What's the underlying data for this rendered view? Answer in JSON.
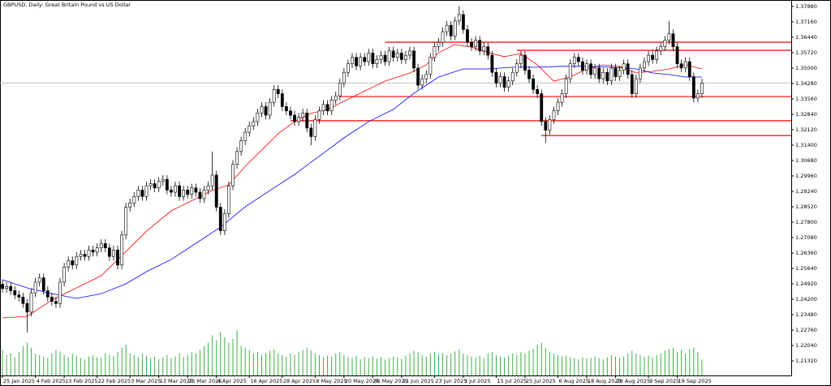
{
  "chart_data": {
    "type": "candlestick",
    "title": "GBPUSD, Daily:  Great Britain Pound vs US Dollar",
    "up_color": "#ffffff",
    "down_color": "#000000",
    "volume_color": "#3cb043",
    "open": [
      1.249,
      1.247,
      1.248,
      1.246,
      1.244,
      1.243,
      1.24,
      1.236,
      1.245,
      1.25,
      1.252,
      1.246,
      1.243,
      1.241,
      1.24,
      1.25,
      1.257,
      1.26,
      1.258,
      1.262,
      1.263,
      1.262,
      1.265,
      1.264,
      1.266,
      1.268,
      1.266,
      1.262,
      1.265,
      1.258,
      1.272,
      1.285,
      1.287,
      1.29,
      1.293,
      1.29,
      1.295,
      1.296,
      1.294,
      1.297,
      1.298,
      1.293,
      1.292,
      1.295,
      1.29,
      1.293,
      1.291,
      1.294,
      1.292,
      1.289,
      1.293,
      1.295,
      1.3,
      1.285,
      1.274,
      1.282,
      1.295,
      1.305,
      1.311,
      1.316,
      1.32,
      1.323,
      1.325,
      1.329,
      1.332,
      1.328,
      1.334,
      1.34,
      1.338,
      1.332,
      1.33,
      1.328,
      1.325,
      1.327,
      1.329,
      1.322,
      1.318,
      1.326,
      1.33,
      1.333,
      1.33,
      1.335,
      1.337,
      1.343,
      1.348,
      1.352,
      1.355,
      1.351,
      1.355,
      1.353,
      1.357,
      1.352,
      1.354,
      1.356,
      1.353,
      1.358,
      1.355,
      1.357,
      1.354,
      1.356,
      1.358,
      1.35,
      1.342,
      1.345,
      1.347,
      1.355,
      1.36,
      1.362,
      1.367,
      1.37,
      1.365,
      1.372,
      1.375,
      1.368,
      1.362,
      1.36,
      1.363,
      1.358,
      1.36,
      1.356,
      1.348,
      1.343,
      1.346,
      1.341,
      1.344,
      1.348,
      1.352,
      1.356,
      1.349,
      1.345,
      1.34,
      1.338,
      1.325,
      1.321,
      1.326,
      1.33,
      1.334,
      1.338,
      1.345,
      1.352,
      1.355,
      1.353,
      1.349,
      1.352,
      1.347,
      1.35,
      1.345,
      1.348,
      1.344,
      1.35,
      1.346,
      1.349,
      1.352,
      1.347,
      1.338,
      1.345,
      1.35,
      1.353,
      1.356,
      1.354,
      1.358,
      1.36,
      1.363,
      1.366,
      1.36,
      1.352,
      1.35,
      1.353,
      1.346,
      1.336,
      1.338
    ],
    "high": [
      1.251,
      1.25,
      1.25,
      1.248,
      1.246,
      1.245,
      1.242,
      1.247,
      1.252,
      1.254,
      1.254,
      1.248,
      1.245,
      1.243,
      1.252,
      1.259,
      1.262,
      1.262,
      1.264,
      1.265,
      1.265,
      1.267,
      1.267,
      1.268,
      1.27,
      1.27,
      1.268,
      1.267,
      1.267,
      1.274,
      1.287,
      1.289,
      1.292,
      1.295,
      1.295,
      1.297,
      1.298,
      1.298,
      1.299,
      1.3,
      1.3,
      1.295,
      1.297,
      1.297,
      1.295,
      1.295,
      1.296,
      1.296,
      1.294,
      1.295,
      1.297,
      1.311,
      1.302,
      1.287,
      1.284,
      1.297,
      1.307,
      1.313,
      1.318,
      1.322,
      1.325,
      1.327,
      1.331,
      1.334,
      1.334,
      1.336,
      1.342,
      1.342,
      1.34,
      1.334,
      1.332,
      1.33,
      1.329,
      1.331,
      1.331,
      1.324,
      1.328,
      1.332,
      1.335,
      1.335,
      1.337,
      1.339,
      1.345,
      1.35,
      1.354,
      1.357,
      1.357,
      1.357,
      1.357,
      1.359,
      1.359,
      1.356,
      1.358,
      1.358,
      1.36,
      1.36,
      1.359,
      1.359,
      1.358,
      1.36,
      1.36,
      1.352,
      1.347,
      1.349,
      1.357,
      1.362,
      1.364,
      1.369,
      1.372,
      1.372,
      1.374,
      1.379,
      1.377,
      1.37,
      1.364,
      1.365,
      1.365,
      1.362,
      1.362,
      1.358,
      1.35,
      1.348,
      1.348,
      1.346,
      1.35,
      1.354,
      1.358,
      1.358,
      1.351,
      1.347,
      1.342,
      1.34,
      1.327,
      1.328,
      1.332,
      1.336,
      1.34,
      1.347,
      1.354,
      1.357,
      1.357,
      1.355,
      1.354,
      1.354,
      1.352,
      1.352,
      1.35,
      1.35,
      1.352,
      1.352,
      1.351,
      1.354,
      1.354,
      1.349,
      1.347,
      1.352,
      1.355,
      1.358,
      1.358,
      1.36,
      1.362,
      1.365,
      1.372,
      1.368,
      1.362,
      1.354,
      1.355,
      1.355,
      1.348,
      1.34,
      1.345
    ],
    "low": [
      1.245,
      1.245,
      1.244,
      1.242,
      1.241,
      1.238,
      1.2265,
      1.234,
      1.243,
      1.248,
      1.244,
      1.241,
      1.239,
      1.238,
      1.238,
      1.248,
      1.255,
      1.256,
      1.256,
      1.26,
      1.26,
      1.26,
      1.262,
      1.262,
      1.264,
      1.264,
      1.26,
      1.26,
      1.256,
      1.256,
      1.27,
      1.283,
      1.285,
      1.288,
      1.288,
      1.288,
      1.293,
      1.292,
      1.292,
      1.295,
      1.291,
      1.29,
      1.29,
      1.288,
      1.288,
      1.289,
      1.289,
      1.29,
      1.287,
      1.287,
      1.291,
      1.293,
      1.283,
      1.272,
      1.272,
      1.28,
      1.293,
      1.303,
      1.309,
      1.314,
      1.318,
      1.321,
      1.323,
      1.327,
      1.326,
      1.326,
      1.332,
      1.336,
      1.33,
      1.328,
      1.326,
      1.323,
      1.323,
      1.325,
      1.32,
      1.314,
      1.316,
      1.324,
      1.328,
      1.328,
      1.328,
      1.333,
      1.335,
      1.341,
      1.346,
      1.35,
      1.349,
      1.349,
      1.351,
      1.351,
      1.35,
      1.35,
      1.352,
      1.351,
      1.351,
      1.353,
      1.353,
      1.352,
      1.352,
      1.354,
      1.348,
      1.34,
      1.34,
      1.343,
      1.345,
      1.353,
      1.358,
      1.36,
      1.365,
      1.363,
      1.363,
      1.37,
      1.366,
      1.36,
      1.358,
      1.358,
      1.356,
      1.356,
      1.354,
      1.346,
      1.341,
      1.341,
      1.339,
      1.339,
      1.342,
      1.346,
      1.35,
      1.347,
      1.343,
      1.338,
      1.336,
      1.323,
      1.315,
      1.319,
      1.324,
      1.328,
      1.332,
      1.336,
      1.343,
      1.35,
      1.351,
      1.347,
      1.347,
      1.345,
      1.345,
      1.343,
      1.343,
      1.342,
      1.342,
      1.344,
      1.344,
      1.347,
      1.345,
      1.336,
      1.336,
      1.343,
      1.348,
      1.351,
      1.352,
      1.352,
      1.356,
      1.358,
      1.361,
      1.358,
      1.35,
      1.348,
      1.348,
      1.344,
      1.334,
      1.334,
      1.336
    ],
    "close": [
      1.247,
      1.248,
      1.246,
      1.244,
      1.243,
      1.24,
      1.236,
      1.245,
      1.25,
      1.252,
      1.246,
      1.243,
      1.241,
      1.24,
      1.25,
      1.257,
      1.26,
      1.258,
      1.262,
      1.263,
      1.262,
      1.265,
      1.264,
      1.266,
      1.268,
      1.266,
      1.262,
      1.265,
      1.258,
      1.272,
      1.285,
      1.287,
      1.29,
      1.293,
      1.29,
      1.295,
      1.296,
      1.294,
      1.297,
      1.298,
      1.293,
      1.292,
      1.295,
      1.29,
      1.293,
      1.291,
      1.294,
      1.292,
      1.289,
      1.293,
      1.295,
      1.3,
      1.285,
      1.274,
      1.282,
      1.295,
      1.305,
      1.311,
      1.316,
      1.32,
      1.323,
      1.325,
      1.329,
      1.332,
      1.328,
      1.334,
      1.34,
      1.338,
      1.332,
      1.33,
      1.328,
      1.325,
      1.327,
      1.329,
      1.322,
      1.318,
      1.326,
      1.33,
      1.333,
      1.33,
      1.335,
      1.337,
      1.343,
      1.348,
      1.352,
      1.355,
      1.351,
      1.355,
      1.353,
      1.357,
      1.352,
      1.354,
      1.356,
      1.353,
      1.358,
      1.355,
      1.357,
      1.354,
      1.356,
      1.358,
      1.35,
      1.342,
      1.345,
      1.347,
      1.355,
      1.36,
      1.362,
      1.367,
      1.37,
      1.365,
      1.372,
      1.375,
      1.368,
      1.362,
      1.36,
      1.363,
      1.358,
      1.36,
      1.356,
      1.348,
      1.343,
      1.346,
      1.341,
      1.344,
      1.348,
      1.352,
      1.356,
      1.349,
      1.345,
      1.34,
      1.338,
      1.325,
      1.321,
      1.326,
      1.33,
      1.334,
      1.338,
      1.345,
      1.352,
      1.355,
      1.353,
      1.349,
      1.352,
      1.347,
      1.35,
      1.345,
      1.348,
      1.344,
      1.35,
      1.346,
      1.349,
      1.352,
      1.347,
      1.338,
      1.345,
      1.35,
      1.353,
      1.356,
      1.354,
      1.358,
      1.36,
      1.363,
      1.366,
      1.36,
      1.352,
      1.35,
      1.353,
      1.346,
      1.336,
      1.338,
      1.343
    ],
    "volume": [
      35,
      28,
      30,
      25,
      32,
      40,
      45,
      38,
      30,
      28,
      26,
      24,
      30,
      35,
      33,
      28,
      25,
      30,
      27,
      24,
      22,
      26,
      28,
      25,
      24,
      30,
      28,
      26,
      32,
      38,
      42,
      30,
      28,
      25,
      30,
      27,
      24,
      26,
      22,
      25,
      28,
      24,
      26,
      30,
      25,
      28,
      32,
      30,
      35,
      40,
      45,
      55,
      48,
      60,
      52,
      45,
      50,
      62,
      40,
      38,
      35,
      30,
      32,
      28,
      30,
      34,
      36,
      30,
      28,
      26,
      30,
      28,
      32,
      35,
      38,
      34,
      30,
      28,
      25,
      27,
      26,
      30,
      32,
      28,
      25,
      24,
      27,
      22,
      25,
      24,
      26,
      23,
      25,
      22,
      24,
      26,
      25,
      23,
      27,
      30,
      34,
      32,
      28,
      26,
      30,
      32,
      29,
      31,
      28,
      30,
      33,
      36,
      30,
      28,
      26,
      25,
      27,
      24,
      30,
      32,
      28,
      26,
      25,
      27,
      30,
      28,
      32,
      30,
      34,
      36,
      42,
      45,
      38,
      32,
      30,
      28,
      26,
      27,
      25,
      24,
      22,
      25,
      23,
      24,
      26,
      24,
      22,
      25,
      28,
      26,
      24,
      26,
      30,
      34,
      30,
      28,
      26,
      27,
      25,
      28,
      30,
      34,
      36,
      38,
      32,
      35,
      30,
      36,
      38,
      32,
      22
    ],
    "ma": [
      {
        "color": "#ff0000",
        "x": [
          0,
          6,
          12,
          18,
          24,
          30,
          35,
          41,
          47,
          51,
          55,
          59,
          63,
          67,
          71,
          75,
          79,
          83,
          87,
          93,
          99,
          103,
          106,
          110,
          114,
          118,
          122,
          126,
          130,
          134,
          138,
          142,
          146,
          150,
          154,
          158,
          162,
          166,
          170
        ],
        "values": [
          1.2333,
          1.234,
          1.2416,
          1.2473,
          1.253,
          1.2643,
          1.2738,
          1.2833,
          1.289,
          1.2928,
          1.2954,
          1.3041,
          1.3117,
          1.3193,
          1.325,
          1.3288,
          1.3307,
          1.3345,
          1.3383,
          1.3439,
          1.3477,
          1.3515,
          1.3572,
          1.361,
          1.3598,
          1.3572,
          1.3553,
          1.3568,
          1.3515,
          1.3439,
          1.3458,
          1.3496,
          1.3515,
          1.3508,
          1.3477,
          1.3485,
          1.3496,
          1.3515,
          1.3496
        ]
      },
      {
        "color": "#0000ff",
        "x": [
          0,
          6,
          12,
          18,
          24,
          30,
          35,
          41,
          47,
          53,
          59,
          65,
          71,
          75,
          79,
          83,
          89,
          95,
          100,
          106,
          112,
          118,
          124,
          130,
          136,
          142,
          148,
          154,
          158,
          162,
          166,
          170
        ],
        "values": [
          1.2511,
          1.2473,
          1.2446,
          1.2424,
          1.2446,
          1.2492,
          1.2549,
          1.2606,
          1.2681,
          1.2757,
          1.2852,
          1.2928,
          1.3003,
          1.306,
          1.3117,
          1.3174,
          1.325,
          1.3307,
          1.3382,
          1.3458,
          1.3496,
          1.3496,
          1.3504,
          1.3504,
          1.3508,
          1.3508,
          1.3504,
          1.3496,
          1.3477,
          1.347,
          1.3458,
          1.3458
        ]
      }
    ],
    "level_color": "#ff0000",
    "levels": [
      {
        "value": 1.3621,
        "start": 93
      },
      {
        "value": 1.3583,
        "start": 125
      },
      {
        "value": 1.3367,
        "start": 82
      },
      {
        "value": 1.3254,
        "start": 70
      },
      {
        "value": 1.3185,
        "start": 131
      }
    ],
    "last_price_color": "#c0c0c0",
    "xlim": [
      -0.6,
      191.7
    ],
    "xticks": [
      {
        "value": 0,
        "label": "25 Jan 2025"
      },
      {
        "value": 8,
        "label": "4 Feb 2025"
      },
      {
        "value": 15,
        "label": "13 Feb 2025"
      },
      {
        "value": 23,
        "label": "22 Feb 2025"
      },
      {
        "value": 31,
        "label": "3 Mar 2025"
      },
      {
        "value": 38,
        "label": "13 Mar 2025"
      },
      {
        "value": 45,
        "label": "25 Mar 2025"
      },
      {
        "value": 52,
        "label": "4 Apr 2025"
      },
      {
        "value": 60,
        "label": "16 Apr 2025"
      },
      {
        "value": 68,
        "label": "28 Apr 2025"
      },
      {
        "value": 76,
        "label": "8 May 2025"
      },
      {
        "value": 83,
        "label": "20 May 2025"
      },
      {
        "value": 90,
        "label": "30 May 2025"
      },
      {
        "value": 97,
        "label": "11 Jun 2025"
      },
      {
        "value": 105,
        "label": "23 Jun 2025"
      },
      {
        "value": 112,
        "label": "3 Jul 2025"
      },
      {
        "value": 120,
        "label": "15 Jul 2025"
      },
      {
        "value": 127,
        "label": "25 Jul 2025"
      },
      {
        "value": 135,
        "label": "6 Aug 2025"
      },
      {
        "value": 142,
        "label": "18 Aug 2025"
      },
      {
        "value": 149,
        "label": "28 Aug 2025"
      },
      {
        "value": 157,
        "label": "9 Sep 2025"
      },
      {
        "value": 164,
        "label": "19 Sep 2025"
      }
    ],
    "ylim": [
      1.2064,
      1.3818
    ],
    "yticks": [
      {
        "value": 1.3788,
        "label": "1.37880"
      },
      {
        "value": 1.3716,
        "label": "1.37160"
      },
      {
        "value": 1.3644,
        "label": "1.36440"
      },
      {
        "value": 1.3572,
        "label": "1.35720"
      },
      {
        "value": 1.35,
        "label": "1.35000"
      },
      {
        "value": 1.3428,
        "label": "1.34280"
      },
      {
        "value": 1.3356,
        "label": "1.33560"
      },
      {
        "value": 1.3284,
        "label": "1.32840"
      },
      {
        "value": 1.3212,
        "label": "1.32120"
      },
      {
        "value": 1.314,
        "label": "1.31400"
      },
      {
        "value": 1.3068,
        "label": "1.30680"
      },
      {
        "value": 1.2996,
        "label": "1.29960"
      },
      {
        "value": 1.2924,
        "label": "1.29240"
      },
      {
        "value": 1.2852,
        "label": "1.28520"
      },
      {
        "value": 1.278,
        "label": "1.27800"
      },
      {
        "value": 1.2708,
        "label": "1.27080"
      },
      {
        "value": 1.2636,
        "label": "1.26360"
      },
      {
        "value": 1.2564,
        "label": "1.25640"
      },
      {
        "value": 1.2492,
        "label": "1.24920"
      },
      {
        "value": 1.242,
        "label": "1.24200"
      },
      {
        "value": 1.2348,
        "label": "1.23480"
      },
      {
        "value": 1.2276,
        "label": "1.22760"
      },
      {
        "value": 1.2204,
        "label": "1.22040"
      },
      {
        "value": 1.2132,
        "label": "1.21320"
      }
    ]
  }
}
